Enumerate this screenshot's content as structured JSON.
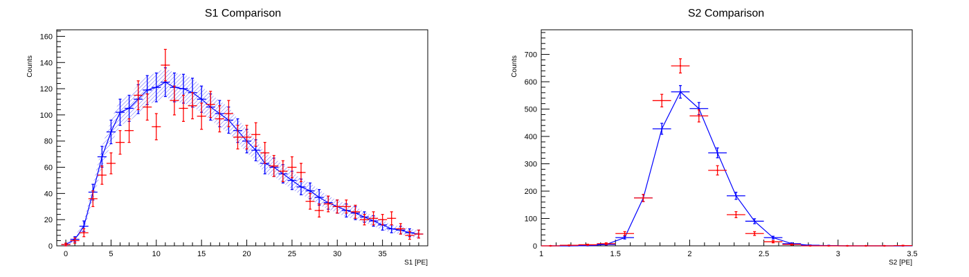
{
  "chart_data": [
    {
      "type": "line",
      "title": "S1 Comparison",
      "xlabel": "S1 [PE]",
      "ylabel": "Counts",
      "xlim": [
        -1,
        40
      ],
      "ylim": [
        0,
        165
      ],
      "xticks": [
        "0",
        "5",
        "10",
        "15",
        "20",
        "25",
        "30",
        "35"
      ],
      "xtick_values": [
        0,
        5,
        10,
        15,
        20,
        25,
        30,
        35
      ],
      "yticks": [
        "0",
        "20",
        "40",
        "60",
        "80",
        "100",
        "120",
        "140",
        "160"
      ],
      "ytick_values": [
        0,
        20,
        40,
        60,
        80,
        100,
        120,
        140,
        160
      ],
      "bin_width": 1,
      "grid": false,
      "series": [
        {
          "color": "#0000ff",
          "style": "line-with-hatched-error-band",
          "x": [
            0,
            1,
            2,
            3,
            4,
            5,
            6,
            7,
            8,
            9,
            10,
            11,
            12,
            13,
            14,
            15,
            16,
            17,
            18,
            19,
            20,
            21,
            22,
            23,
            24,
            25,
            26,
            27,
            28,
            29,
            30,
            31,
            32,
            33,
            34,
            35,
            36,
            37,
            38,
            39
          ],
          "y": [
            1,
            5,
            15,
            41,
            68,
            87,
            102,
            105,
            112,
            119,
            121,
            125,
            121,
            120,
            117,
            112,
            106,
            101,
            96,
            88,
            80,
            73,
            63,
            60,
            55,
            50,
            45,
            42,
            37,
            33,
            30,
            27,
            25,
            22,
            19,
            16,
            13,
            12,
            10,
            9
          ],
          "error": [
            1,
            2,
            4,
            6,
            8,
            9,
            10,
            10,
            11,
            11,
            11,
            11,
            11,
            11,
            11,
            10,
            10,
            10,
            10,
            9,
            9,
            8,
            8,
            7,
            7,
            7,
            6,
            6,
            6,
            5,
            5,
            5,
            5,
            4,
            4,
            4,
            3,
            3,
            3,
            3
          ]
        },
        {
          "color": "#ff0000",
          "style": "points-with-error-bars",
          "x": [
            0,
            1,
            2,
            3,
            4,
            5,
            6,
            7,
            8,
            9,
            10,
            11,
            12,
            13,
            14,
            15,
            16,
            17,
            18,
            19,
            20,
            21,
            22,
            23,
            24,
            25,
            26,
            27,
            28,
            29,
            30,
            31,
            32,
            33,
            34,
            35,
            36,
            37,
            38,
            39
          ],
          "y": [
            1,
            4,
            10,
            36,
            54,
            63,
            79,
            88,
            115,
            106,
            91,
            138,
            111,
            105,
            107,
            99,
            108,
            97,
            101,
            83,
            83,
            85,
            71,
            61,
            57,
            60,
            56,
            34,
            27,
            32,
            30,
            30,
            26,
            20,
            21,
            20,
            21,
            13,
            8,
            9
          ],
          "error": [
            1,
            2,
            3,
            6,
            7,
            8,
            9,
            9,
            11,
            10,
            10,
            12,
            11,
            10,
            10,
            10,
            10,
            10,
            10,
            9,
            9,
            9,
            8,
            8,
            8,
            8,
            7,
            6,
            5,
            6,
            5,
            5,
            5,
            4,
            5,
            4,
            5,
            4,
            3,
            3
          ]
        }
      ]
    },
    {
      "type": "line",
      "title": "S2 Comparison",
      "xlabel": "S2 [PE]",
      "ylabel": "Counts",
      "xlim": [
        1,
        3.5
      ],
      "ylim": [
        0,
        790
      ],
      "xticks": [
        "1",
        "1.5",
        "2",
        "2.5",
        "3",
        "3.5"
      ],
      "xtick_values": [
        1,
        1.5,
        2,
        2.5,
        3,
        3.5
      ],
      "yticks": [
        "0",
        "100",
        "200",
        "300",
        "400",
        "500",
        "600",
        "700"
      ],
      "ytick_values": [
        0,
        100,
        200,
        300,
        400,
        500,
        600,
        700
      ],
      "bin_width": 0.125,
      "grid": false,
      "series": [
        {
          "color": "#0000ff",
          "style": "line-with-error-bars",
          "x": [
            1.0625,
            1.1875,
            1.3125,
            1.4375,
            1.5625,
            1.6875,
            1.8125,
            1.9375,
            2.0625,
            2.1875,
            2.3125,
            2.4375,
            2.5625,
            2.6875,
            2.8125,
            2.9375,
            3.0625,
            3.1875,
            3.3125,
            3.4375
          ],
          "y": [
            0,
            0,
            1,
            5,
            30,
            175,
            428,
            563,
            502,
            340,
            183,
            90,
            30,
            8,
            2,
            1,
            0,
            0,
            0,
            0
          ],
          "error": [
            0,
            0,
            1,
            2,
            5,
            13,
            20,
            23,
            22,
            18,
            13,
            9,
            5,
            3,
            1,
            1,
            0,
            0,
            0,
            0
          ]
        },
        {
          "color": "#ff0000",
          "style": "points-with-error-bars",
          "x": [
            1.0625,
            1.1875,
            1.3125,
            1.4375,
            1.5625,
            1.6875,
            1.8125,
            1.9375,
            2.0625,
            2.1875,
            2.3125,
            2.4375,
            2.5625,
            2.6875,
            2.8125,
            2.9375,
            3.0625,
            3.1875,
            3.3125,
            3.4375
          ],
          "y": [
            0,
            2,
            4,
            8,
            45,
            175,
            531,
            658,
            475,
            276,
            114,
            45,
            15,
            5,
            0,
            0,
            0,
            0,
            0,
            1
          ],
          "error": [
            0,
            1,
            2,
            3,
            7,
            13,
            23,
            26,
            22,
            17,
            11,
            7,
            4,
            2,
            0,
            0,
            0,
            0,
            0,
            1
          ]
        }
      ]
    }
  ]
}
